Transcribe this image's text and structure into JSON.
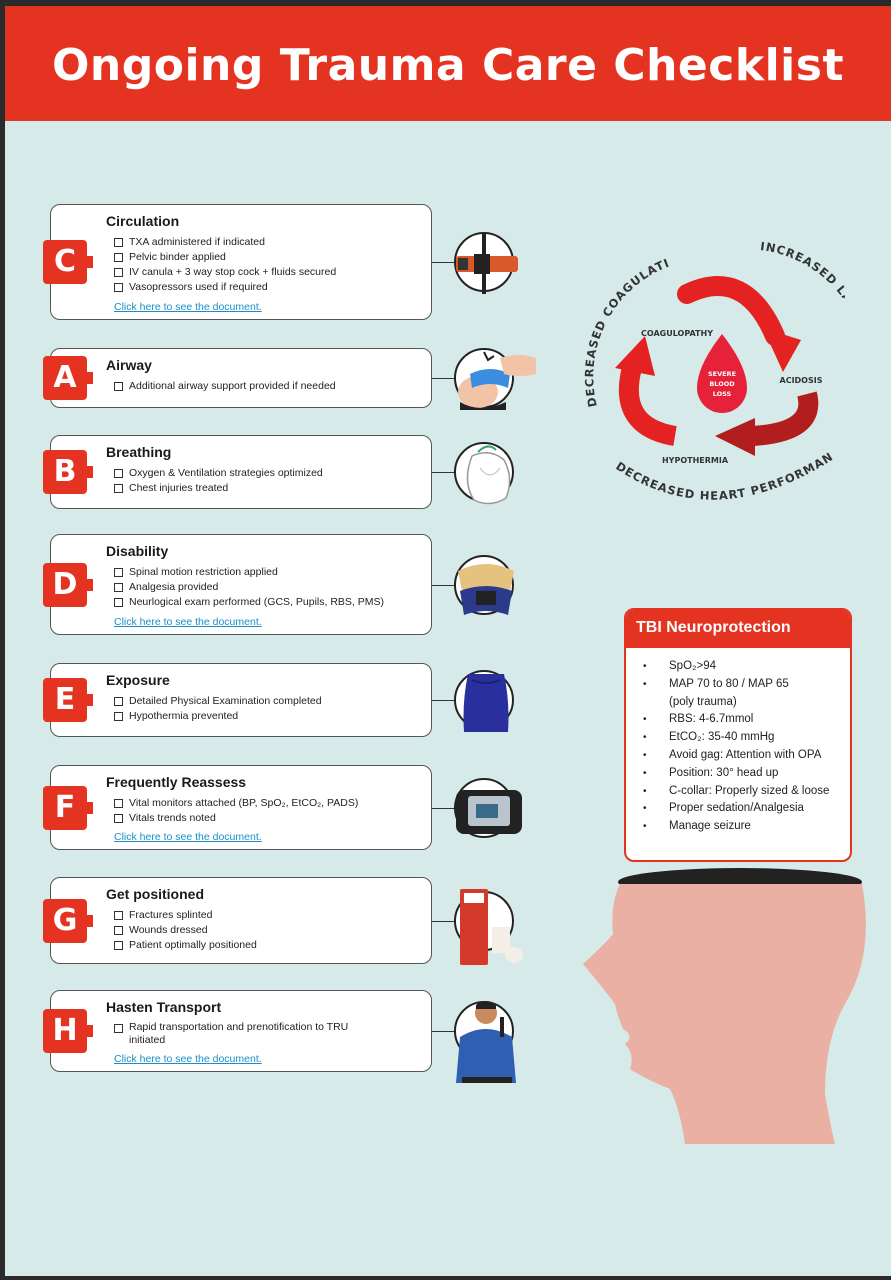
{
  "title": "Ongoing Trauma Care Checklist",
  "colors": {
    "accent": "#e53321",
    "background": "#d6eaea",
    "link": "#1a8fc4"
  },
  "sections": [
    {
      "letter": "C",
      "title": "Circulation",
      "items": [
        "TXA administered if indicated",
        "Pelvic binder applied",
        "IV canula + 3 way stop cock + fluids secured",
        "Vasopressors used if required"
      ],
      "link": "Click here to see the document.",
      "icon": "tourniquet-icon"
    },
    {
      "letter": "A",
      "title": "Airway",
      "items": [
        "Additional airway support provided if needed"
      ],
      "link": "",
      "icon": "airway-maneuver-icon"
    },
    {
      "letter": "B",
      "title": "Breathing",
      "items": [
        "Oxygen & Ventilation strategies optimized",
        "Chest injuries treated"
      ],
      "link": "",
      "icon": "chest-seal-icon"
    },
    {
      "letter": "D",
      "title": "Disability",
      "items": [
        "Spinal motion restriction applied",
        "Analgesia provided",
        "Neurlogical exam performed (GCS, Pupils, RBS, PMS)"
      ],
      "link": "Click here to see the document.",
      "icon": "cervical-collar-icon"
    },
    {
      "letter": "E",
      "title": "Exposure",
      "items": [
        "Detailed Physical Examination completed",
        "Hypothermia prevented"
      ],
      "link": "",
      "icon": "blanket-icon"
    },
    {
      "letter": "F",
      "title": "Frequently Reassess",
      "items": [
        "Vital monitors attached (BP, SpO₂, EtCO₂, PADS)",
        "Vitals trends noted"
      ],
      "link": "Click here to see the document.",
      "icon": "vital-monitor-icon"
    },
    {
      "letter": "G",
      "title": "Get positioned",
      "items": [
        "Fractures splinted",
        "Wounds dressed",
        "Patient optimally positioned"
      ],
      "link": "",
      "icon": "splint-bandage-icon"
    },
    {
      "letter": "H",
      "title": "Hasten Transport",
      "items": [
        "Rapid transportation and prenotification to TRU initiated"
      ],
      "link": "Click here to see the document.",
      "icon": "paramedic-icon"
    }
  ],
  "trauma_triad": {
    "outer_top_left": "DECREASED COAGULATION",
    "outer_top_right": "INCREASED LACTIC ACID IN BLOOD",
    "outer_bottom": "DECREASED HEART PERFORMANCE",
    "coagulopathy": "COAGULOPATHY",
    "acidosis": "ACIDOSIS",
    "hypothermia": "HYPOTHERMIA",
    "center_line1": "SEVERE",
    "center_line2": "BLOOD",
    "center_line3": "LOSS"
  },
  "tbi": {
    "title": "TBI Neuroprotection",
    "items": [
      "SpO₂>94",
      "MAP 70 to 80 / MAP 65",
      "(poly trauma)",
      "RBS: 4-6.7mmol",
      "EtCO₂: 35-40 mmHg",
      "Avoid gag: Attention with OPA",
      "Position: 30° head up",
      "C-collar: Properly sized & loose",
      "Proper sedation/Analgesia",
      "Manage seizure"
    ]
  }
}
